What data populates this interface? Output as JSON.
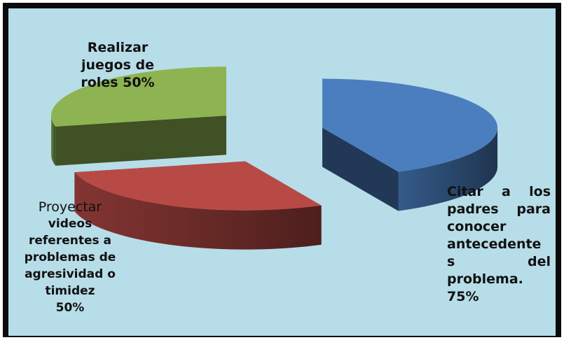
{
  "chart_data": {
    "type": "pie",
    "title": "",
    "slices": [
      {
        "label_lines": [
          "Citar a los",
          "padres para",
          "conocer",
          "antecedente",
          "s del",
          "problema.",
          "75%"
        ],
        "value": 75,
        "color": "#4a7ebf"
      },
      {
        "label_lines": [
          "Proyectar",
          "videos",
          "referentes a",
          "problemas de",
          "agresividad o",
          "timidez",
          "50%"
        ],
        "value": 50,
        "color": "#b84a46"
      },
      {
        "label_lines": [
          "Realizar",
          "juegos de",
          "roles 50%"
        ],
        "value": 50,
        "color": "#8eb352"
      }
    ],
    "background": "#b7dde8",
    "legend": "none",
    "style": "3d-exploded"
  }
}
